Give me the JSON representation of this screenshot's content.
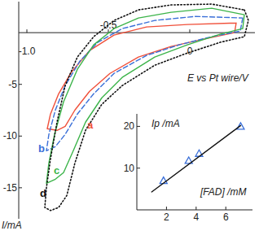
{
  "chart_data": [
    {
      "type": "line",
      "x_label": "E vs Pt wire/V",
      "y_label": "I/mA",
      "xlim": [
        -1.05,
        0.4
      ],
      "ylim": [
        -18,
        3
      ],
      "xticks": [
        {
          "value": -1,
          "label": "-1.0"
        },
        -0.5,
        0
      ],
      "yticks": [
        -5,
        -10,
        -15
      ],
      "series": [
        {
          "name": "a",
          "color": "#f0503a",
          "line_style": "solid",
          "x": [
            0.285,
            0.275,
            0.085,
            -0.115,
            -0.315,
            -0.49,
            -0.615,
            -0.705,
            -0.765,
            -0.815,
            -0.875,
            -0.855,
            -0.805,
            -0.725,
            -0.615,
            -0.465,
            -0.265,
            -0.015,
            0.285
          ],
          "values": [
            0.94,
            0,
            -0.63,
            -1.34,
            -2.36,
            -3.94,
            -5.67,
            -7.48,
            -9.06,
            -9.45,
            -9.29,
            -7.87,
            -5.91,
            -3.78,
            -1.73,
            -0.24,
            0.55,
            0.79,
            0.94
          ]
        },
        {
          "name": "b",
          "color": "#3a6fd8",
          "line_style": "dashed",
          "x": [
            0.325,
            0.31,
            0.135,
            -0.065,
            -0.265,
            -0.465,
            -0.59,
            -0.69,
            -0.765,
            -0.825,
            -0.88,
            -0.865,
            -0.825,
            -0.765,
            -0.675,
            -0.565,
            -0.415,
            -0.215,
            0.035,
            0.325
          ],
          "values": [
            1.42,
            0.16,
            -0.39,
            -1.18,
            -2.2,
            -3.94,
            -5.91,
            -7.87,
            -9.84,
            -11.02,
            -11.42,
            -9.84,
            -7.48,
            -5.12,
            -2.76,
            -0.94,
            0.39,
            1.18,
            1.57,
            1.42
          ]
        },
        {
          "name": "c",
          "color": "#3cb44a",
          "line_style": "solid",
          "x": [
            0.335,
            0.325,
            0.185,
            -0.015,
            -0.215,
            -0.415,
            -0.54,
            -0.64,
            -0.715,
            -0.775,
            -0.825,
            -0.88,
            -0.865,
            -0.83,
            -0.775,
            -0.69,
            -0.59,
            -0.465,
            -0.315,
            -0.115,
            0.135,
            0.335
          ],
          "values": [
            1.73,
            0.39,
            -0.16,
            -1.18,
            -2.36,
            -4.33,
            -6.3,
            -8.66,
            -11.42,
            -13.54,
            -14.17,
            -14.57,
            -12.6,
            -9.84,
            -6.69,
            -3.54,
            -1.18,
            0.39,
            1.42,
            1.97,
            2.36,
            1.73
          ]
        },
        {
          "name": "d",
          "color": "#111111",
          "line_style": "dotted",
          "x": [
            0.335,
            0.36,
            0.335,
            0.185,
            -0.015,
            -0.215,
            -0.415,
            -0.54,
            -0.64,
            -0.705,
            -0.755,
            -0.805,
            -0.855,
            -0.89,
            -0.88,
            -0.855,
            -0.815,
            -0.765,
            -0.69,
            -0.59,
            -0.465,
            -0.315,
            -0.115,
            0.135,
            0.335
          ],
          "values": [
            2.2,
            1.18,
            -0.39,
            -0.94,
            -1.97,
            -3.15,
            -5.12,
            -6.93,
            -9.45,
            -12.6,
            -15.75,
            -16.9,
            -17.2,
            -16.9,
            -15,
            -12.2,
            -8.66,
            -5.12,
            -2.36,
            -0.39,
            1.18,
            2.2,
            2.68,
            2.76,
            2.2
          ]
        }
      ]
    },
    {
      "type": "scatter",
      "x_label": "[FAD] /mM",
      "y_label": "Ip /mA",
      "xlim": [
        0,
        7.8
      ],
      "ylim": [
        0,
        23
      ],
      "xticks": [
        2,
        4,
        6
      ],
      "yticks": [
        10,
        20
      ],
      "series": [
        {
          "color": "#3a6fd8",
          "marker": "triangle",
          "x": [
            1.8,
            3.5,
            4.2,
            7
          ],
          "values": [
            7,
            11.8,
            13.5,
            20
          ]
        },
        {
          "type": "line",
          "color": "#111111",
          "line_style": "solid",
          "x": [
            1,
            7
          ],
          "values": [
            4.3,
            20.2
          ]
        }
      ]
    }
  ]
}
